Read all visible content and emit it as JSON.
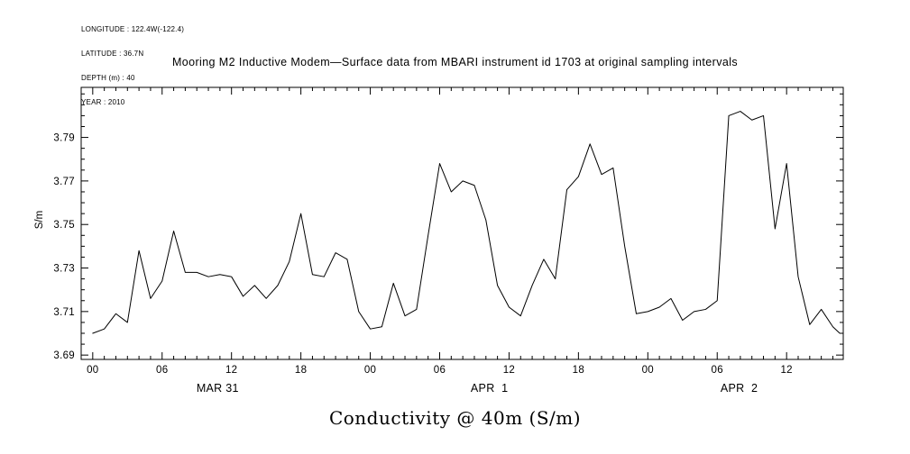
{
  "meta": {
    "longitude": "LONGITUDE : 122.4W(-122.4)",
    "latitude": "LATITUDE : 36.7N",
    "depth": "DEPTH (m) : 40",
    "year": "YEAR : 2010"
  },
  "title": "Mooring M2 Inductive Modem—Surface data from MBARI instrument id 1703 at original sampling intervals",
  "chart_data": {
    "type": "line",
    "title": "Mooring M2 Inductive Modem—Surface data from MBARI instrument id 1703 at original sampling intervals",
    "caption": "Conductivity @ 40m (S/m)",
    "ylabel": "S/m",
    "line_color": "#000000",
    "ylim": [
      3.688,
      3.813
    ],
    "xlim_hours": [
      -1,
      64.9
    ],
    "y_ticks": [
      3.69,
      3.71,
      3.73,
      3.75,
      3.77,
      3.79
    ],
    "y_minor_step": 0.005,
    "x_minor_step": 1,
    "x_major_ticks": [
      {
        "hour": 0,
        "label": "00"
      },
      {
        "hour": 6,
        "label": "06"
      },
      {
        "hour": 12,
        "label": "12"
      },
      {
        "hour": 18,
        "label": "18"
      },
      {
        "hour": 24,
        "label": "00"
      },
      {
        "hour": 30,
        "label": "06"
      },
      {
        "hour": 36,
        "label": "12"
      },
      {
        "hour": 42,
        "label": "18"
      },
      {
        "hour": 48,
        "label": "00"
      },
      {
        "hour": 54,
        "label": "06"
      },
      {
        "hour": 60,
        "label": "12"
      }
    ],
    "day_labels": [
      {
        "label": "MAR 31",
        "hour": 10.8
      },
      {
        "label": "APR  1",
        "hour": 34.3
      },
      {
        "label": "APR  2",
        "hour": 55.9
      }
    ],
    "x_hours": [
      0,
      1,
      2,
      3,
      4,
      5,
      6,
      7,
      8,
      9,
      10,
      11,
      12,
      13,
      14,
      15,
      16,
      17,
      18,
      19,
      20,
      21,
      22,
      23,
      24,
      25,
      26,
      27,
      28,
      29,
      30,
      31,
      32,
      33,
      34,
      35,
      36,
      37,
      38,
      39,
      40,
      41,
      42,
      43,
      44,
      45,
      46,
      47,
      48,
      49,
      50,
      51,
      52,
      53,
      54,
      55,
      56,
      57,
      58,
      59,
      60,
      61,
      62,
      63,
      64,
      64.6
    ],
    "values": [
      3.7,
      3.702,
      3.709,
      3.705,
      3.738,
      3.716,
      3.724,
      3.747,
      3.728,
      3.728,
      3.726,
      3.727,
      3.726,
      3.717,
      3.722,
      3.716,
      3.722,
      3.733,
      3.755,
      3.727,
      3.726,
      3.737,
      3.734,
      3.71,
      3.702,
      3.703,
      3.723,
      3.708,
      3.711,
      3.745,
      3.778,
      3.765,
      3.77,
      3.768,
      3.752,
      3.722,
      3.712,
      3.708,
      3.722,
      3.734,
      3.725,
      3.766,
      3.772,
      3.787,
      3.773,
      3.776,
      3.74,
      3.709,
      3.71,
      3.712,
      3.716,
      3.706,
      3.71,
      3.711,
      3.715,
      3.8,
      3.802,
      3.798,
      3.8,
      3.748,
      3.778,
      3.726,
      3.704,
      3.711,
      3.703,
      3.7
    ]
  }
}
